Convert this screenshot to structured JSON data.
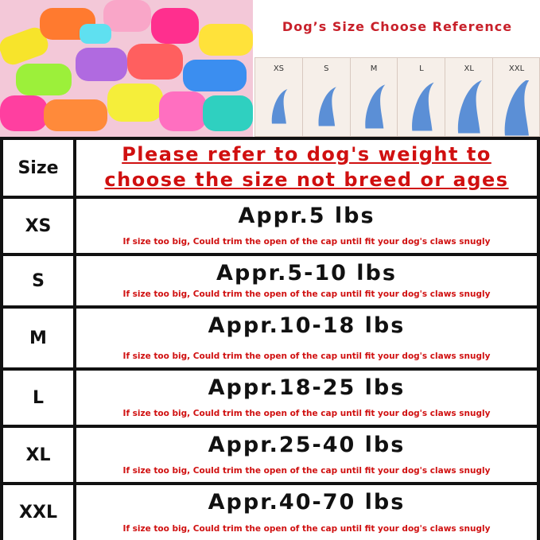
{
  "reference": {
    "title": "Dog’s Size Choose Reference",
    "sizes": [
      "XS",
      "S",
      "M",
      "L",
      "XL",
      "XXL"
    ]
  },
  "table": {
    "header": {
      "size": "Size",
      "note_line1": "Please refer to dog's weight to",
      "note_line2": "choose the size not breed or ages"
    },
    "rows": [
      {
        "size": "XS",
        "weight": "Appr.5 lbs",
        "note": "If size too big, Could trim the open of the cap until fit your dog's claws snugly"
      },
      {
        "size": "S",
        "weight": "Appr.5-10 lbs",
        "note": "If size too big, Could trim the open of the cap until fit your dog's claws snugly"
      },
      {
        "size": "M",
        "weight": "Appr.10-18 lbs",
        "note": "If size too big, Could trim the open of the cap until fit your dog's claws snugly"
      },
      {
        "size": "L",
        "weight": "Appr.18-25 lbs",
        "note": "If size too big, Could trim the open of the cap until fit your dog's claws snugly"
      },
      {
        "size": "XL",
        "weight": "Appr.25-40 lbs",
        "note": "If size too big, Could trim the open of the cap until fit your dog's claws snugly"
      },
      {
        "size": "XXL",
        "weight": "Appr.40-70 lbs",
        "note": "If size too big, Could trim the open of the cap until fit your dog's claws snugly"
      }
    ]
  }
}
